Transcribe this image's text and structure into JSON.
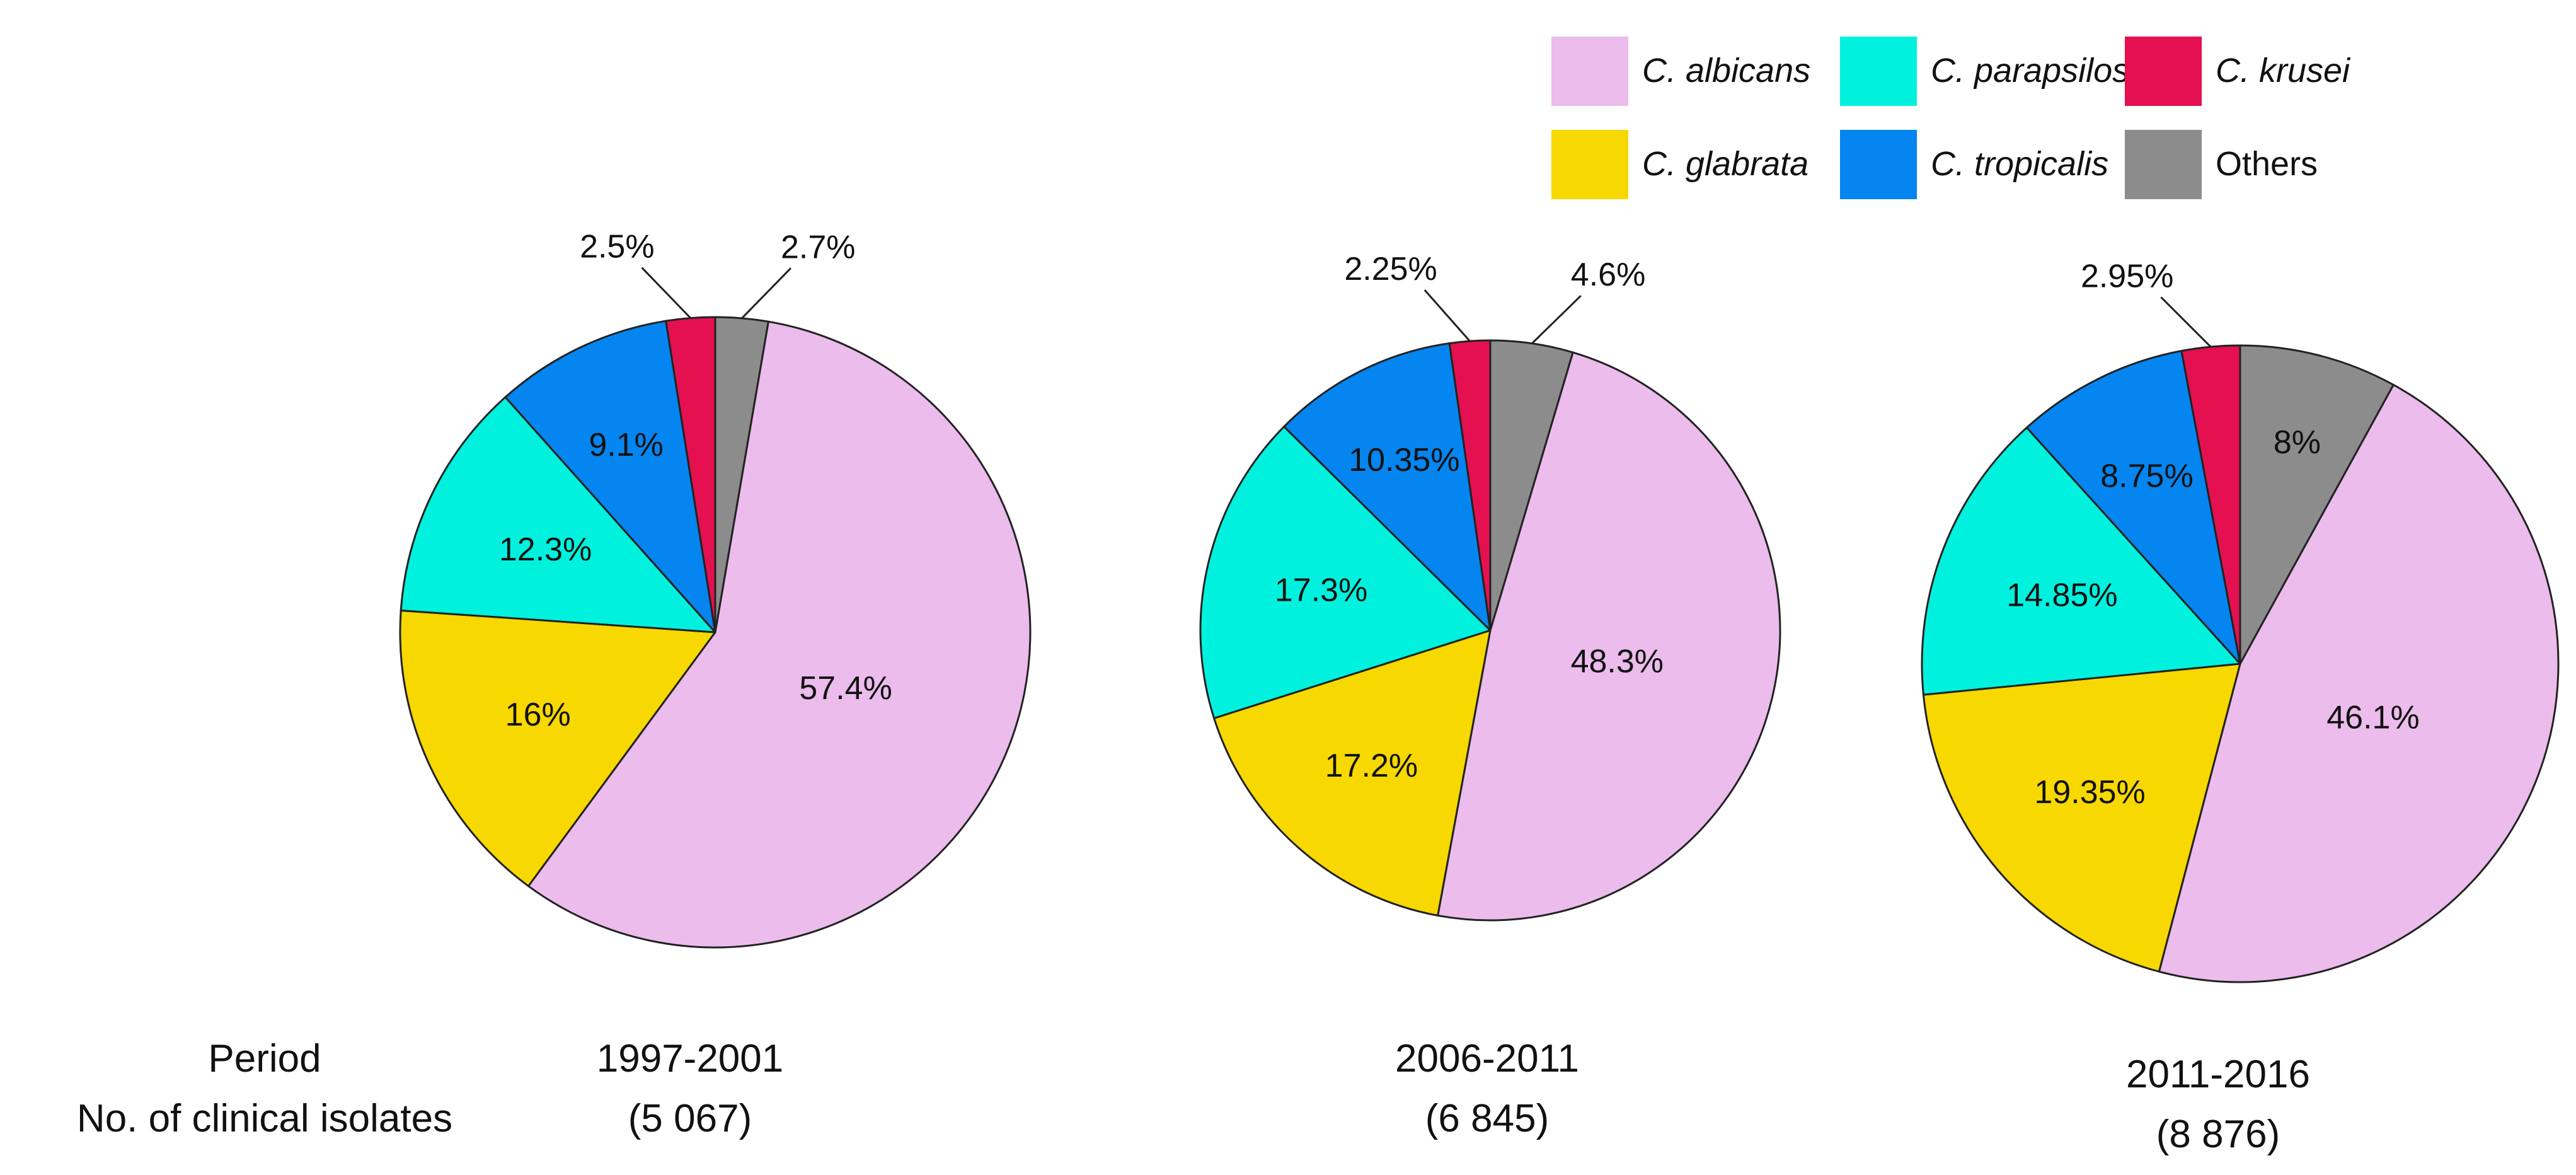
{
  "chart_data": {
    "type": "pie",
    "row_labels": {
      "period": "Period",
      "isolates": "No. of clinical isolates"
    },
    "legend": [
      {
        "name": "C. albicans",
        "color": "#ebbcec",
        "italic": true
      },
      {
        "name": "C. parapsilosis",
        "color": "#00f2de",
        "italic": true
      },
      {
        "name": "C. krusei",
        "color": "#e5104f",
        "italic": true
      },
      {
        "name": "C. glabrata",
        "color": "#f7d800",
        "italic": true
      },
      {
        "name": "C. tropicalis",
        "color": "#0585ef",
        "italic": true
      },
      {
        "name": "Others",
        "color": "#8c8c8c",
        "italic": false
      }
    ],
    "pies": [
      {
        "period": "1997-2001",
        "isolates": "(5 067)",
        "slices": [
          {
            "name": "C. albicans",
            "value": 57.4,
            "label": "57.4%"
          },
          {
            "name": "C. glabrata",
            "value": 16,
            "label": "16%"
          },
          {
            "name": "C. parapsilosis",
            "value": 12.3,
            "label": "12.3%"
          },
          {
            "name": "C. tropicalis",
            "value": 9.1,
            "label": "9.1%"
          },
          {
            "name": "C. krusei",
            "value": 2.5,
            "label": "2.5%"
          },
          {
            "name": "Others",
            "value": 2.7,
            "label": "2.7%"
          }
        ]
      },
      {
        "period": "2006-2011",
        "isolates": "(6 845)",
        "slices": [
          {
            "name": "C. albicans",
            "value": 48.3,
            "label": "48.3%"
          },
          {
            "name": "C. glabrata",
            "value": 17.2,
            "label": "17.2%"
          },
          {
            "name": "C. parapsilosis",
            "value": 17.3,
            "label": "17.3%"
          },
          {
            "name": "C. tropicalis",
            "value": 10.35,
            "label": "10.35%"
          },
          {
            "name": "C. krusei",
            "value": 2.25,
            "label": "2.25%"
          },
          {
            "name": "Others",
            "value": 4.6,
            "label": "4.6%"
          }
        ]
      },
      {
        "period": "2011-2016",
        "isolates": "(8 876)",
        "slices": [
          {
            "name": "C. albicans",
            "value": 46.1,
            "label": "46.1%"
          },
          {
            "name": "C. glabrata",
            "value": 19.35,
            "label": "19.35%"
          },
          {
            "name": "C. parapsilosis",
            "value": 14.85,
            "label": "14.85%"
          },
          {
            "name": "C. tropicalis",
            "value": 8.75,
            "label": "8.75%"
          },
          {
            "name": "C. krusei",
            "value": 2.95,
            "label": "2.95%"
          },
          {
            "name": "Others",
            "value": 8,
            "label": "8%"
          }
        ]
      }
    ]
  }
}
